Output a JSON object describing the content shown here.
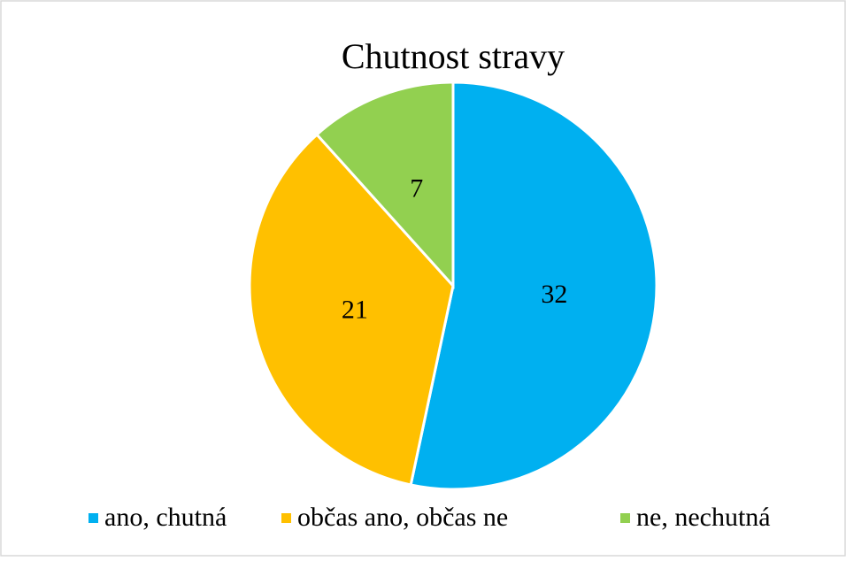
{
  "chart_data": {
    "type": "pie",
    "title": "Chutnost stravy",
    "categories": [
      "ano, chutná",
      "občas ano, občas ne",
      "ne, nechutná"
    ],
    "values": [
      32,
      21,
      7
    ],
    "colors": [
      "#00b0f0",
      "#ffc000",
      "#92d050"
    ],
    "legend": "bottom"
  }
}
